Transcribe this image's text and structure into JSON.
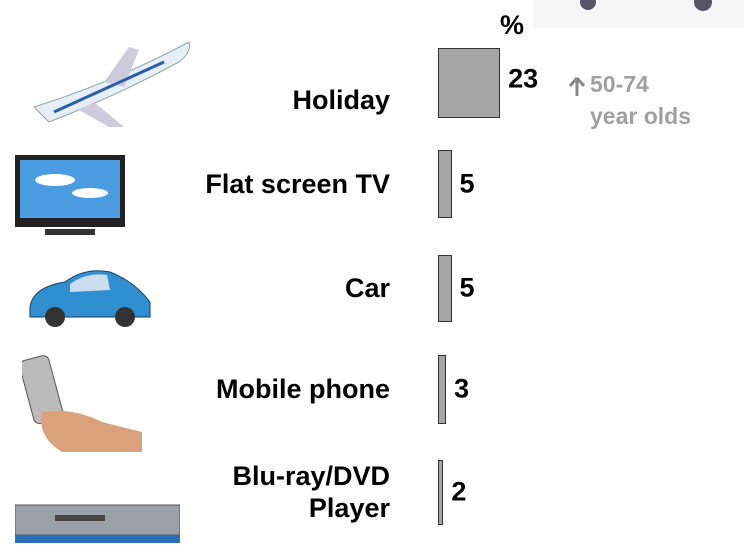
{
  "chart_data": {
    "type": "bar",
    "orientation": "horizontal",
    "unit_label": "%",
    "categories": [
      "Holiday",
      "Flat screen TV",
      "Car",
      "Mobile phone",
      "Blu-ray/DVD\nPlayer"
    ],
    "values": [
      23,
      5,
      5,
      3,
      2
    ],
    "color": "#a6a6a6",
    "annotation": "50-74\nyear olds"
  }
}
